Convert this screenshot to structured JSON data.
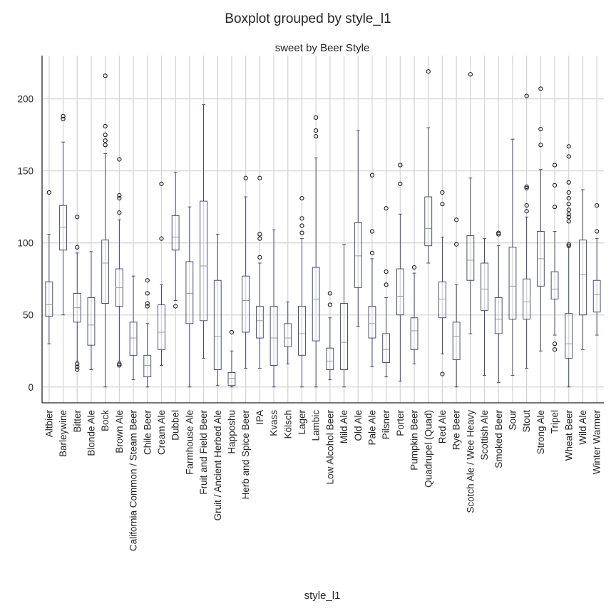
{
  "chart_data": {
    "type": "boxplot",
    "title": "Boxplot grouped by style_l1",
    "subtitle": "sweet by Beer Style",
    "xlabel": "style_l1",
    "ylabel": "",
    "ylim": [
      -11,
      230
    ],
    "yticks": [
      0,
      50,
      100,
      150,
      200
    ],
    "grid": true,
    "categories": [
      "Altbier",
      "Barleywine",
      "Bitter",
      "Blonde Ale",
      "Bock",
      "Brown Ale",
      "California Common / Steam Beer",
      "Chile Beer",
      "Cream Ale",
      "Dubbel",
      "Farmhouse Ale",
      "Fruit and Field Beer",
      "Gruit / Ancient Herbed Ale",
      "Happoshu",
      "Herb and Spice Beer",
      "IPA",
      "Kvass",
      "Kölsch",
      "Lager",
      "Lambic",
      "Low Alcohol Beer",
      "Mild Ale",
      "Old Ale",
      "Pale Ale",
      "Pilsner",
      "Porter",
      "Pumpkin Beer",
      "Quadrupel (Quad)",
      "Red Ale",
      "Rye Beer",
      "Scotch Ale / Wee Heavy",
      "Scottish Ale",
      "Smoked Beer",
      "Sour",
      "Stout",
      "Strong Ale",
      "Tripel",
      "Wheat Beer",
      "Wild Ale",
      "Winter Warmer"
    ],
    "boxes": [
      {
        "whislo": 30,
        "q1": 49,
        "med": 57,
        "q3": 73,
        "whishi": 106,
        "fliers": [
          135
        ]
      },
      {
        "whislo": 50,
        "q1": 95,
        "med": 111,
        "q3": 126,
        "whishi": 170,
        "fliers": [
          186,
          188
        ]
      },
      {
        "whislo": 18,
        "q1": 45,
        "med": 55,
        "q3": 65,
        "whishi": 93,
        "fliers": [
          12,
          14,
          16,
          97,
          118
        ]
      },
      {
        "whislo": 12,
        "q1": 29,
        "med": 43,
        "q3": 62,
        "whishi": 94,
        "fliers": []
      },
      {
        "whislo": 0,
        "q1": 58,
        "med": 86,
        "q3": 102,
        "whishi": 162,
        "fliers": [
          168,
          171,
          175,
          181,
          216
        ]
      },
      {
        "whislo": 18,
        "q1": 56,
        "med": 69,
        "q3": 82,
        "whishi": 116,
        "fliers": [
          15,
          16,
          121,
          131,
          133,
          158
        ]
      },
      {
        "whislo": 5,
        "q1": 22,
        "med": 34,
        "q3": 45,
        "whishi": 77,
        "fliers": []
      },
      {
        "whislo": 0,
        "q1": 7,
        "med": 15,
        "q3": 22,
        "whishi": 44,
        "fliers": [
          56,
          58,
          65,
          74
        ]
      },
      {
        "whislo": 15,
        "q1": 26,
        "med": 38,
        "q3": 57,
        "whishi": 71,
        "fliers": [
          103,
          141
        ]
      },
      {
        "whislo": 60,
        "q1": 95,
        "med": 104,
        "q3": 119,
        "whishi": 149,
        "fliers": [
          56
        ]
      },
      {
        "whislo": 0,
        "q1": 44,
        "med": 65,
        "q3": 87,
        "whishi": 125,
        "fliers": []
      },
      {
        "whislo": 20,
        "q1": 46,
        "med": 84,
        "q3": 129,
        "whishi": 196,
        "fliers": []
      },
      {
        "whislo": 1,
        "q1": 12,
        "med": 35,
        "q3": 74,
        "whishi": 106,
        "fliers": []
      },
      {
        "whislo": 0,
        "q1": 1,
        "med": 6,
        "q3": 10,
        "whishi": 25,
        "fliers": [
          38
        ]
      },
      {
        "whislo": 13,
        "q1": 38,
        "med": 60,
        "q3": 77,
        "whishi": 132,
        "fliers": [
          145
        ]
      },
      {
        "whislo": 13,
        "q1": 34,
        "med": 46,
        "q3": 56,
        "whishi": 86,
        "fliers": [
          90,
          103,
          106,
          145
        ]
      },
      {
        "whislo": 0,
        "q1": 15,
        "med": 34,
        "q3": 56,
        "whishi": 109,
        "fliers": []
      },
      {
        "whislo": 16,
        "q1": 28,
        "med": 34,
        "q3": 44,
        "whishi": 59,
        "fliers": []
      },
      {
        "whislo": 0,
        "q1": 22,
        "med": 37,
        "q3": 56,
        "whishi": 103,
        "fliers": [
          107,
          112,
          117,
          131
        ]
      },
      {
        "whislo": 0,
        "q1": 32,
        "med": 61,
        "q3": 83,
        "whishi": 159,
        "fliers": [
          174,
          178,
          187
        ]
      },
      {
        "whislo": 5,
        "q1": 12,
        "med": 18,
        "q3": 27,
        "whishi": 48,
        "fliers": [
          57,
          65
        ]
      },
      {
        "whislo": 0,
        "q1": 12,
        "med": 31,
        "q3": 58,
        "whishi": 99,
        "fliers": []
      },
      {
        "whislo": 42,
        "q1": 69,
        "med": 91,
        "q3": 114,
        "whishi": 178,
        "fliers": []
      },
      {
        "whislo": 14,
        "q1": 34,
        "med": 44,
        "q3": 56,
        "whishi": 89,
        "fliers": [
          93,
          108,
          147
        ]
      },
      {
        "whislo": 7,
        "q1": 17,
        "med": 26,
        "q3": 37,
        "whishi": 62,
        "fliers": [
          71,
          80,
          124
        ]
      },
      {
        "whislo": 4,
        "q1": 50,
        "med": 63,
        "q3": 82,
        "whishi": 120,
        "fliers": [
          141,
          154
        ]
      },
      {
        "whislo": 16,
        "q1": 26,
        "med": 39,
        "q3": 48,
        "whishi": 79,
        "fliers": [
          83
        ]
      },
      {
        "whislo": 86,
        "q1": 98,
        "med": 110,
        "q3": 132,
        "whishi": 180,
        "fliers": [
          219
        ]
      },
      {
        "whislo": 23,
        "q1": 48,
        "med": 61,
        "q3": 73,
        "whishi": 104,
        "fliers": [
          9,
          127,
          135
        ]
      },
      {
        "whislo": 0,
        "q1": 19,
        "med": 35,
        "q3": 45,
        "whishi": 71,
        "fliers": [
          99,
          116
        ]
      },
      {
        "whislo": 37,
        "q1": 74,
        "med": 88,
        "q3": 105,
        "whishi": 145,
        "fliers": [
          217
        ]
      },
      {
        "whislo": 8,
        "q1": 53,
        "med": 68,
        "q3": 86,
        "whishi": 103,
        "fliers": []
      },
      {
        "whislo": 3,
        "q1": 37,
        "med": 47,
        "q3": 62,
        "whishi": 98,
        "fliers": [
          106,
          107
        ]
      },
      {
        "whislo": 8,
        "q1": 47,
        "med": 70,
        "q3": 97,
        "whishi": 172,
        "fliers": []
      },
      {
        "whislo": 13,
        "q1": 47,
        "med": 59,
        "q3": 75,
        "whishi": 118,
        "fliers": [
          122,
          126,
          138,
          139,
          202
        ]
      },
      {
        "whislo": 25,
        "q1": 70,
        "med": 89,
        "q3": 108,
        "whishi": 151,
        "fliers": [
          168,
          179,
          207
        ]
      },
      {
        "whislo": 36,
        "q1": 61,
        "med": 68,
        "q3": 80,
        "whishi": 108,
        "fliers": [
          26,
          30,
          125,
          140,
          154
        ]
      },
      {
        "whislo": 0,
        "q1": 20,
        "med": 30,
        "q3": 51,
        "whishi": 97,
        "fliers": [
          98,
          99,
          115,
          118,
          120,
          123,
          127,
          131,
          135,
          142,
          160,
          167
        ]
      },
      {
        "whislo": 26,
        "q1": 50,
        "med": 78,
        "q3": 102,
        "whishi": 137,
        "fliers": []
      },
      {
        "whislo": 36,
        "q1": 52,
        "med": 64,
        "q3": 74,
        "whishi": 103,
        "fliers": [
          108,
          126
        ]
      }
    ]
  }
}
